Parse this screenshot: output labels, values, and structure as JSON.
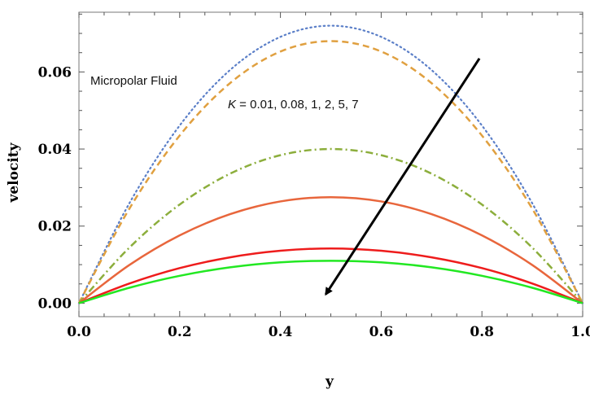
{
  "chart_data": {
    "type": "line",
    "title": "",
    "xlabel": "y",
    "ylabel": "velocity",
    "xlim": [
      0,
      1
    ],
    "ylim": [
      -0.0035,
      0.0755
    ],
    "x_ticks": [
      "0.0",
      "0.2",
      "0.4",
      "0.6",
      "0.8",
      "1.0"
    ],
    "y_ticks": [
      "0.00",
      "0.02",
      "0.04",
      "0.06"
    ],
    "grid": false,
    "legend": null,
    "x": [
      0,
      0.1,
      0.2,
      0.3,
      0.4,
      0.5,
      0.6,
      0.7,
      0.8,
      0.9,
      1.0
    ],
    "series": [
      {
        "values": [
          0,
          0.0259,
          0.0461,
          0.0605,
          0.0691,
          0.072,
          0.0691,
          0.0605,
          0.0461,
          0.0259,
          0
        ],
        "color": "#5b7fc8",
        "dash": "dotted"
      },
      {
        "values": [
          0,
          0.0245,
          0.0435,
          0.0571,
          0.0653,
          0.068,
          0.0653,
          0.0571,
          0.0435,
          0.0245,
          0
        ],
        "color": "#e0a040",
        "dash": "dashed"
      },
      {
        "values": [
          0,
          0.0144,
          0.0256,
          0.0336,
          0.0384,
          0.04,
          0.0384,
          0.0336,
          0.0256,
          0.0144,
          0
        ],
        "color": "#8cae3c",
        "dash": "dash-dot"
      },
      {
        "values": [
          0,
          0.0099,
          0.0176,
          0.0231,
          0.0264,
          0.0275,
          0.0264,
          0.0231,
          0.0176,
          0.0099,
          0
        ],
        "color": "#e8663c",
        "dash": "solid"
      },
      {
        "values": [
          0,
          0.0051,
          0.0091,
          0.0119,
          0.0136,
          0.0142,
          0.0136,
          0.0119,
          0.0091,
          0.0051,
          0
        ],
        "color": "#ee1c1c",
        "dash": "solid"
      },
      {
        "values": [
          0,
          0.004,
          0.0071,
          0.0093,
          0.0106,
          0.011,
          0.0106,
          0.0093,
          0.0071,
          0.004,
          0
        ],
        "color": "#22e822",
        "dash": "solid"
      }
    ],
    "annotations": {
      "label": "Micropolar Fluid",
      "k_text": "K = 0.01, 0.08, 1, 2, 5, 7",
      "arrow": {
        "from": [
          0.795,
          0.0635
        ],
        "to": [
          0.49,
          0.0023
        ]
      }
    }
  }
}
